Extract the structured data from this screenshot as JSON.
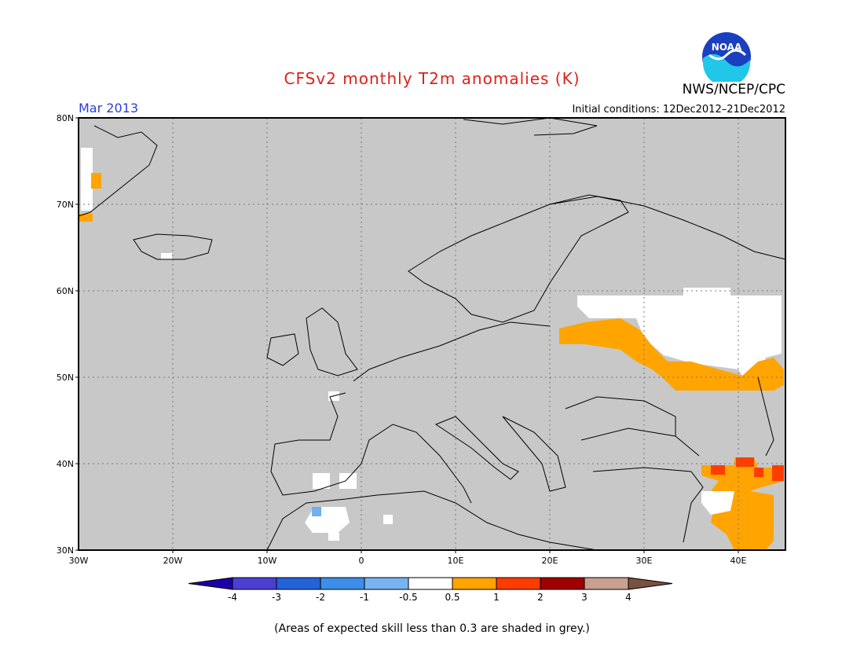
{
  "header": {
    "title": "CFSv2 monthly T2m anomalies (K)",
    "org": "NWS/NCEP/CPC",
    "month": "Mar 2013",
    "initial_conditions": "Initial conditions: 12Dec2012–21Dec2012",
    "logo_text": "NOAA"
  },
  "map": {
    "lon_range": [
      -30,
      45
    ],
    "lat_range": [
      30,
      80
    ],
    "lat_ticks": [
      "30N",
      "40N",
      "50N",
      "60N",
      "70N",
      "80N"
    ],
    "lon_ticks": [
      "30W",
      "20W",
      "10W",
      "0",
      "10E",
      "20E",
      "30E",
      "40E"
    ],
    "colors": {
      "grey": "#c8c8c8",
      "white": "#ffffff",
      "orange": "#ffa400",
      "red": "#ff3c00",
      "lightblue": "#6eb0f0"
    }
  },
  "colorbar": {
    "labels": [
      "-4",
      "-3",
      "-2",
      "-1",
      "-0.5",
      "0.5",
      "1",
      "2",
      "3",
      "4"
    ],
    "colors": [
      "#1c00a8",
      "#4b3fd2",
      "#2462d8",
      "#3c8ee8",
      "#78b4f0",
      "#ffffff",
      "#ffa400",
      "#ff3c00",
      "#a00000",
      "#c8a090",
      "#7a5040"
    ]
  },
  "footnote": "(Areas of expected skill less than 0.3 are shaded in grey.)"
}
